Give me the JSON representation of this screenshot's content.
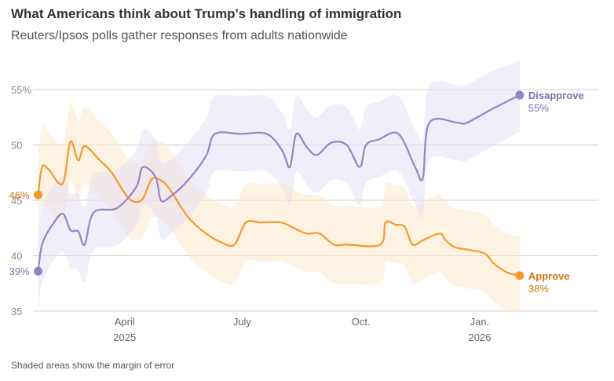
{
  "title": "What Americans think about Trump's handling of immigration",
  "subtitle": "Reuters/Ipsos polls gather responses from adults nationwide",
  "footnote": "Shaded areas show the margin of error",
  "colors": {
    "approve": "#f39a2c",
    "disapprove": "#9385c4",
    "approve_label": "#d3760e",
    "disapprove_label": "#7d6fb0",
    "grid": "#d0d0d0"
  },
  "chart_data": {
    "type": "line",
    "ylim": [
      35,
      56.5
    ],
    "yticks": [
      35,
      40,
      45,
      50,
      55
    ],
    "ytick_labels": [
      "35",
      "40",
      "45",
      "50",
      "55%"
    ],
    "xlim": [
      "2025-01-20",
      "2026-02-12"
    ],
    "xticks": [
      {
        "date": "2025-04-01",
        "label": "April",
        "sublabel": "2025"
      },
      {
        "date": "2025-07-01",
        "label": "July",
        "sublabel": ""
      },
      {
        "date": "2025-10-01",
        "label": "Oct.",
        "sublabel": ""
      },
      {
        "date": "2026-01-01",
        "label": "Jan.",
        "sublabel": "2026"
      }
    ],
    "series": [
      {
        "name": "Approve",
        "end_label": "38%",
        "start_label": "46%",
        "points": [
          [
            "2025-01-24",
            45.5,
            42.0,
            49.0
          ],
          [
            "2025-01-27",
            48.0,
            44.5,
            51.5
          ],
          [
            "2025-02-01",
            47.8,
            44.3,
            51.3
          ],
          [
            "2025-02-12",
            46.5,
            43.0,
            50.0
          ],
          [
            "2025-02-18",
            50.3,
            46.8,
            53.8
          ],
          [
            "2025-02-24",
            48.6,
            45.1,
            52.1
          ],
          [
            "2025-03-01",
            49.9,
            46.4,
            53.4
          ],
          [
            "2025-03-12",
            48.7,
            45.2,
            52.2
          ],
          [
            "2025-03-22",
            47.5,
            44.0,
            51.0
          ],
          [
            "2025-04-04",
            45.2,
            41.7,
            48.7
          ],
          [
            "2025-04-14",
            45.0,
            41.5,
            48.5
          ],
          [
            "2025-04-22",
            46.9,
            43.4,
            50.4
          ],
          [
            "2025-04-29",
            46.8,
            43.3,
            50.3
          ],
          [
            "2025-05-06",
            46.0,
            42.5,
            49.5
          ],
          [
            "2025-05-20",
            43.5,
            40.0,
            47.0
          ],
          [
            "2025-06-03",
            42.0,
            38.5,
            45.5
          ],
          [
            "2025-06-15",
            41.2,
            37.7,
            44.7
          ],
          [
            "2025-06-25",
            41.0,
            37.5,
            44.5
          ],
          [
            "2025-07-04",
            43.0,
            39.5,
            46.5
          ],
          [
            "2025-07-15",
            43.0,
            39.5,
            46.5
          ],
          [
            "2025-07-31",
            43.0,
            39.5,
            46.5
          ],
          [
            "2025-08-10",
            42.5,
            39.0,
            46.0
          ],
          [
            "2025-08-20",
            42.0,
            38.5,
            45.5
          ],
          [
            "2025-08-30",
            42.0,
            38.5,
            45.5
          ],
          [
            "2025-09-10",
            41.0,
            37.5,
            44.5
          ],
          [
            "2025-09-20",
            41.0,
            37.5,
            44.5
          ],
          [
            "2025-10-16",
            41.0,
            37.5,
            44.5
          ],
          [
            "2025-10-20",
            43.0,
            39.5,
            46.5
          ],
          [
            "2025-10-28",
            42.8,
            39.3,
            46.3
          ],
          [
            "2025-11-04",
            42.6,
            39.1,
            46.1
          ],
          [
            "2025-11-10",
            41.0,
            37.5,
            44.5
          ],
          [
            "2025-11-18",
            41.4,
            37.9,
            44.9
          ],
          [
            "2025-12-01",
            42.0,
            38.5,
            45.5
          ],
          [
            "2025-12-05",
            41.5,
            38.0,
            45.0
          ],
          [
            "2025-12-12",
            40.8,
            37.3,
            44.3
          ],
          [
            "2025-12-25",
            40.5,
            37.0,
            44.0
          ],
          [
            "2026-01-05",
            40.2,
            36.7,
            43.7
          ],
          [
            "2026-01-12",
            39.3,
            35.8,
            42.8
          ],
          [
            "2026-01-22",
            38.5,
            35.0,
            42.0
          ],
          [
            "2026-02-01",
            38.2,
            35.0,
            41.7
          ]
        ]
      },
      {
        "name": "Disapprove",
        "end_label": "55%",
        "start_label": "39%",
        "points": [
          [
            "2025-01-24",
            38.6,
            35.2,
            42.0
          ],
          [
            "2025-01-27",
            41.0,
            37.6,
            44.4
          ],
          [
            "2025-02-03",
            42.6,
            39.2,
            46.0
          ],
          [
            "2025-02-12",
            43.8,
            40.4,
            47.2
          ],
          [
            "2025-02-18",
            42.3,
            38.9,
            45.7
          ],
          [
            "2025-02-24",
            42.2,
            38.8,
            45.6
          ],
          [
            "2025-03-01",
            41.0,
            37.6,
            44.4
          ],
          [
            "2025-03-08",
            43.9,
            40.5,
            47.3
          ],
          [
            "2025-03-26",
            44.3,
            40.9,
            47.7
          ],
          [
            "2025-04-10",
            46.2,
            42.8,
            49.6
          ],
          [
            "2025-04-15",
            48.0,
            44.6,
            51.4
          ],
          [
            "2025-04-25",
            47.1,
            43.7,
            50.5
          ],
          [
            "2025-04-29",
            45.0,
            41.6,
            48.4
          ],
          [
            "2025-05-06",
            45.3,
            41.9,
            48.7
          ],
          [
            "2025-05-20",
            46.8,
            43.4,
            50.2
          ],
          [
            "2025-06-03",
            49.0,
            45.6,
            52.4
          ],
          [
            "2025-06-10",
            51.0,
            47.6,
            54.4
          ],
          [
            "2025-06-30",
            51.0,
            47.6,
            54.4
          ],
          [
            "2025-07-20",
            51.0,
            47.6,
            54.4
          ],
          [
            "2025-08-01",
            49.5,
            46.1,
            52.9
          ],
          [
            "2025-08-07",
            48.0,
            44.6,
            51.4
          ],
          [
            "2025-08-12",
            51.0,
            47.6,
            54.4
          ],
          [
            "2025-08-20",
            49.8,
            46.4,
            53.2
          ],
          [
            "2025-08-28",
            49.1,
            45.7,
            52.5
          ],
          [
            "2025-09-08",
            50.2,
            46.8,
            53.6
          ],
          [
            "2025-09-20",
            50.0,
            46.6,
            53.4
          ],
          [
            "2025-09-30",
            48.0,
            44.6,
            51.4
          ],
          [
            "2025-10-05",
            50.0,
            46.6,
            53.4
          ],
          [
            "2025-10-15",
            50.5,
            47.1,
            53.9
          ],
          [
            "2025-10-30",
            51.0,
            47.6,
            54.4
          ],
          [
            "2025-11-12",
            48.0,
            44.6,
            51.4
          ],
          [
            "2025-11-18",
            47.0,
            43.6,
            50.4
          ],
          [
            "2025-11-23",
            52.0,
            48.6,
            55.4
          ],
          [
            "2025-12-15",
            52.0,
            48.6,
            55.4
          ],
          [
            "2025-12-22",
            52.0,
            48.6,
            55.4
          ],
          [
            "2026-01-10",
            53.2,
            49.8,
            56.6
          ],
          [
            "2026-02-01",
            54.5,
            51.2,
            57.6
          ]
        ]
      }
    ]
  }
}
